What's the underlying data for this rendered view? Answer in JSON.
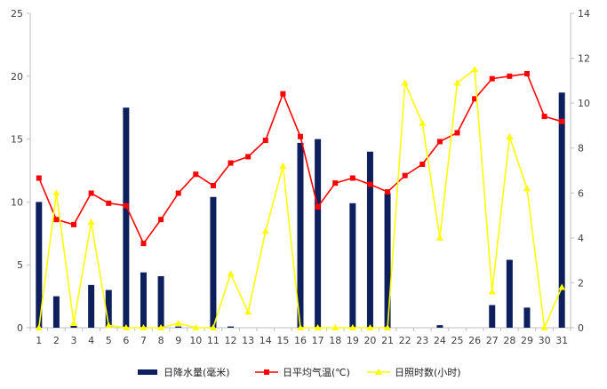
{
  "chart_data": {
    "type": "bar+line",
    "title": "",
    "xlabel": "",
    "ylabel_left": "",
    "ylabel_right": "",
    "categories": [
      "1",
      "2",
      "3",
      "4",
      "5",
      "6",
      "7",
      "8",
      "9",
      "10",
      "11",
      "12",
      "13",
      "14",
      "15",
      "16",
      "17",
      "18",
      "19",
      "20",
      "21",
      "22",
      "23",
      "24",
      "25",
      "26",
      "27",
      "28",
      "29",
      "30",
      "31"
    ],
    "ylim_left": [
      0,
      25
    ],
    "yticks_left": [
      "0",
      "5",
      "10",
      "15",
      "20",
      "25"
    ],
    "ylim_right": [
      0,
      14
    ],
    "yticks_right": [
      "0",
      "2",
      "4",
      "6",
      "8",
      "10",
      "12",
      "14"
    ],
    "grid": false,
    "legend_position": "bottom",
    "series": [
      {
        "name": "日降水量(毫米)",
        "type": "bar",
        "axis": "left",
        "color": "#0d1f5c",
        "values": [
          10,
          2.5,
          0.2,
          3.4,
          3,
          17.5,
          4.4,
          4.1,
          0.1,
          0,
          10.4,
          0.1,
          0,
          0,
          0,
          14.7,
          15,
          0,
          9.9,
          14,
          10.7,
          0,
          0,
          0.2,
          0,
          0,
          1.8,
          5.4,
          1.6,
          0,
          18.7
        ]
      },
      {
        "name": "日平均气温(℃)",
        "type": "line",
        "axis": "left",
        "color": "#ff0000",
        "marker": "square",
        "values": [
          11.9,
          8.6,
          8.2,
          10.7,
          9.9,
          9.7,
          6.7,
          8.6,
          10.7,
          12.2,
          11.3,
          13.1,
          13.6,
          14.9,
          18.6,
          15.2,
          9.6,
          11.5,
          11.9,
          11.4,
          10.8,
          12.1,
          13,
          14.8,
          15.5,
          18.2,
          19.8,
          20,
          20.2,
          16.8,
          16.4
        ]
      },
      {
        "name": "日照时数(小时)",
        "type": "line",
        "axis": "right",
        "color": "#ffff00",
        "marker": "triangle",
        "values": [
          0,
          6,
          0.2,
          4.7,
          0.1,
          0,
          0,
          0,
          0.2,
          0,
          0,
          2.4,
          0.7,
          4.3,
          7.2,
          0,
          0,
          0,
          0,
          0,
          0,
          10.9,
          9.1,
          4,
          10.9,
          11.5,
          1.6,
          8.5,
          6.2,
          0,
          1.8
        ]
      }
    ]
  }
}
